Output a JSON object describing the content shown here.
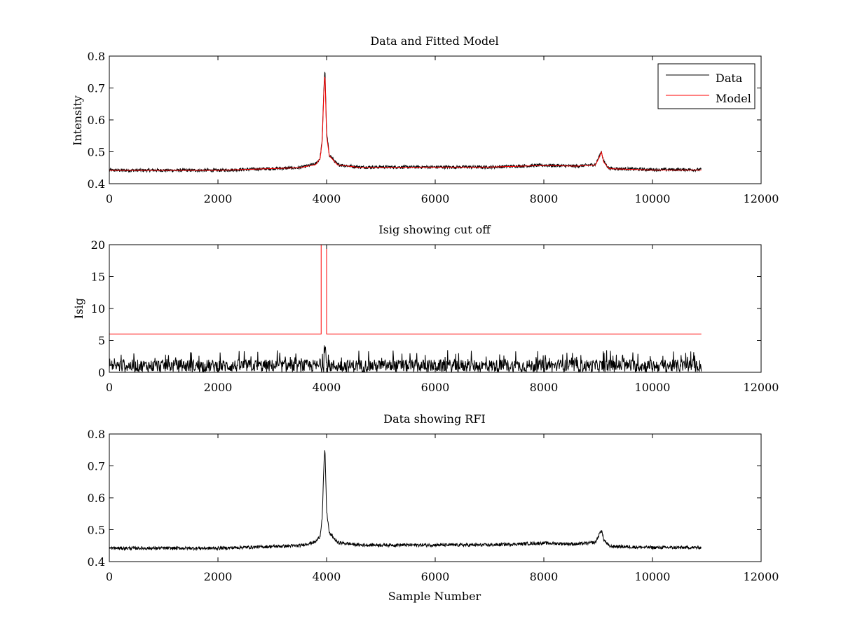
{
  "figure": {
    "background": "#ffffff",
    "data_color": "#000000",
    "model_color": "#ff0000"
  },
  "chart_data": [
    {
      "type": "line",
      "title": "Data and Fitted Model",
      "xlabel": "",
      "ylabel": "Intensity",
      "xlim": [
        0,
        12000
      ],
      "ylim": [
        0.4,
        0.8
      ],
      "xticks": [
        0,
        2000,
        4000,
        6000,
        8000,
        10000,
        12000
      ],
      "xtick_labels": [
        "0",
        "2000",
        "4000",
        "6000",
        "8000",
        "10000",
        "12000"
      ],
      "yticks": [
        0.4,
        0.5,
        0.6,
        0.7,
        0.8
      ],
      "ytick_labels": [
        "0.4",
        "0.5",
        "0.6",
        "0.7",
        "0.8"
      ],
      "legend": {
        "position": "top-right",
        "entries": [
          "Data",
          "Model"
        ]
      },
      "series": [
        {
          "name": "Data",
          "color": "#000000",
          "noise": 0.005,
          "x": [
            0,
            2000,
            3500,
            3800,
            3880,
            3920,
            3950,
            3970,
            4000,
            4050,
            4200,
            4600,
            6000,
            7000,
            8000,
            8600,
            8950,
            9020,
            9060,
            9100,
            9200,
            10000,
            10900
          ],
          "y": [
            0.442,
            0.442,
            0.45,
            0.462,
            0.48,
            0.54,
            0.7,
            0.76,
            0.56,
            0.49,
            0.46,
            0.452,
            0.452,
            0.452,
            0.458,
            0.455,
            0.46,
            0.485,
            0.502,
            0.47,
            0.448,
            0.444,
            0.444
          ]
        },
        {
          "name": "Model",
          "color": "#ff0000",
          "noise": 0.0,
          "x": [
            0,
            2000,
            3500,
            3800,
            3880,
            3920,
            3950,
            3970,
            4000,
            4050,
            4200,
            4600,
            6000,
            7000,
            8000,
            8600,
            8950,
            9020,
            9060,
            9100,
            9200,
            10000,
            10900
          ],
          "y": [
            0.442,
            0.442,
            0.45,
            0.46,
            0.478,
            0.535,
            0.69,
            0.745,
            0.55,
            0.488,
            0.459,
            0.451,
            0.452,
            0.452,
            0.457,
            0.455,
            0.459,
            0.482,
            0.5,
            0.468,
            0.447,
            0.443,
            0.443
          ]
        }
      ]
    },
    {
      "type": "line",
      "title": "Isig showing cut off",
      "xlabel": "",
      "ylabel": "Isig",
      "xlim": [
        0,
        12000
      ],
      "ylim": [
        0,
        20
      ],
      "xticks": [
        0,
        2000,
        4000,
        6000,
        8000,
        10000,
        12000
      ],
      "xtick_labels": [
        "0",
        "2000",
        "4000",
        "6000",
        "8000",
        "10000",
        "12000"
      ],
      "yticks": [
        0,
        5,
        10,
        15,
        20
      ],
      "ytick_labels": [
        "0",
        "5",
        "10",
        "15",
        "20"
      ],
      "series": [
        {
          "name": "Isig",
          "color": "#000000",
          "range": [
            0,
            10900
          ],
          "baseline_max": 2.0,
          "spike_max": 3.5,
          "peak_x": 3970,
          "peak_y": 5.0
        },
        {
          "name": "Cut off",
          "color": "#ff0000",
          "x": [
            0,
            3900,
            3900,
            4000,
            4000,
            10900
          ],
          "y": [
            6,
            6,
            20,
            20,
            6,
            6
          ]
        }
      ]
    },
    {
      "type": "line",
      "title": "Data showing RFI",
      "xlabel": "Sample Number",
      "ylabel": "",
      "xlim": [
        0,
        12000
      ],
      "ylim": [
        0.4,
        0.8
      ],
      "xticks": [
        0,
        2000,
        4000,
        6000,
        8000,
        10000,
        12000
      ],
      "xtick_labels": [
        "0",
        "2000",
        "4000",
        "6000",
        "8000",
        "10000",
        "12000"
      ],
      "yticks": [
        0.4,
        0.5,
        0.6,
        0.7,
        0.8
      ],
      "ytick_labels": [
        "0.4",
        "0.5",
        "0.6",
        "0.7",
        "0.8"
      ],
      "series": [
        {
          "name": "Data",
          "color": "#000000",
          "noise": 0.005,
          "x": [
            0,
            2000,
            3500,
            3800,
            3880,
            3920,
            3950,
            3970,
            4000,
            4050,
            4200,
            4600,
            6000,
            7000,
            8000,
            8600,
            8950,
            9020,
            9060,
            9100,
            9200,
            10000,
            10900
          ],
          "y": [
            0.442,
            0.442,
            0.45,
            0.462,
            0.48,
            0.54,
            0.7,
            0.755,
            0.56,
            0.49,
            0.46,
            0.452,
            0.452,
            0.452,
            0.458,
            0.455,
            0.46,
            0.485,
            0.5,
            0.47,
            0.448,
            0.444,
            0.444
          ]
        }
      ]
    }
  ]
}
